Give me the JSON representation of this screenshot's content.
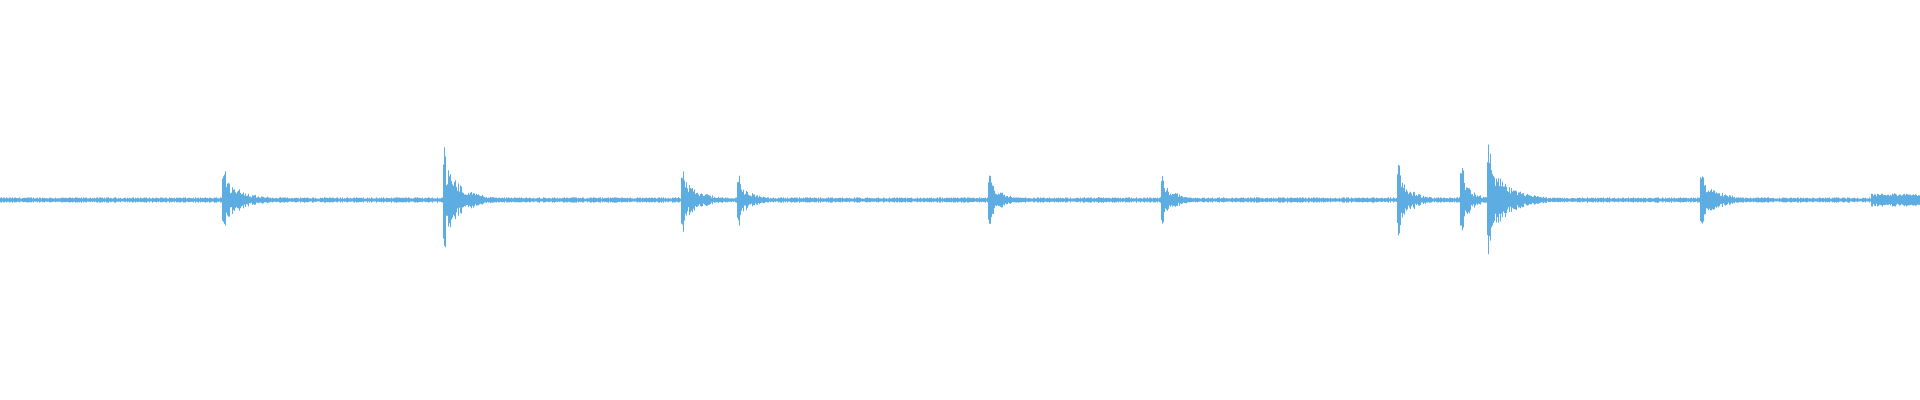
{
  "chart_data": {
    "type": "area",
    "title": "",
    "xlabel": "",
    "ylabel": "",
    "ylim": [
      -1,
      1
    ],
    "xlim": [
      0,
      1
    ],
    "grid": false,
    "legend": "none",
    "color": "#5dade2",
    "baseline_amplitude": 0.012,
    "events": [
      {
        "t": 0.116,
        "amplitude": 0.12,
        "decay": 0.012
      },
      {
        "t": 0.231,
        "amplitude": 0.2,
        "decay": 0.01
      },
      {
        "t": 0.355,
        "amplitude": 0.12,
        "decay": 0.01
      },
      {
        "t": 0.384,
        "amplitude": 0.1,
        "decay": 0.008
      },
      {
        "t": 0.515,
        "amplitude": 0.1,
        "decay": 0.008
      },
      {
        "t": 0.605,
        "amplitude": 0.11,
        "decay": 0.007
      },
      {
        "t": 0.728,
        "amplitude": 0.13,
        "decay": 0.008
      },
      {
        "t": 0.761,
        "amplitude": 0.135,
        "decay": 0.006
      },
      {
        "t": 0.775,
        "amplitude": 0.2,
        "decay": 0.012
      },
      {
        "t": 0.886,
        "amplitude": 0.115,
        "decay": 0.01
      }
    ],
    "sustained_segments": [
      {
        "t_start": 0.974,
        "t_end": 1.0,
        "amplitude": 0.035
      }
    ]
  }
}
